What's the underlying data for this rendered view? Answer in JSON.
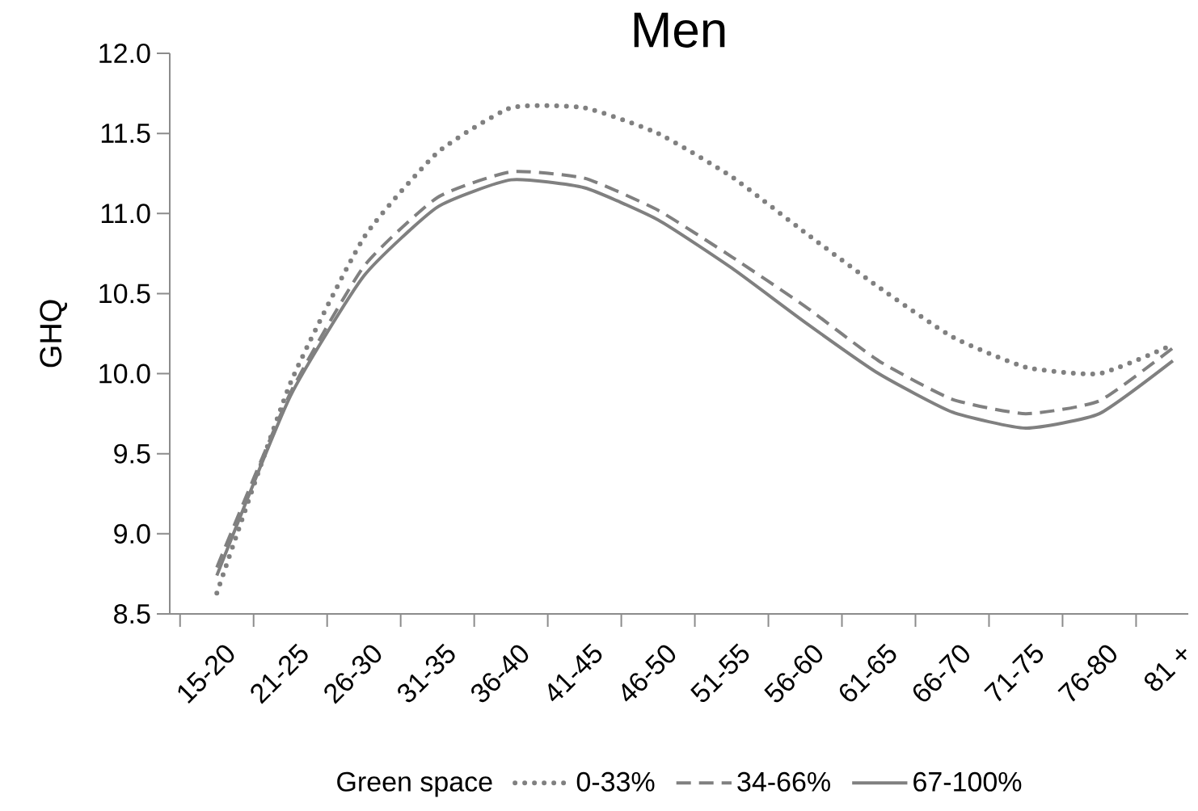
{
  "chart_data": {
    "type": "line",
    "title": "Men",
    "ylabel": "GHQ",
    "legend_title": "Green space",
    "legend": "bottom",
    "categories": [
      "15-20",
      "21-25",
      "26-30",
      "31-35",
      "36-40",
      "41-45",
      "46-50",
      "51-55",
      "56-60",
      "61-65",
      "66-70",
      "71-75",
      "76-80",
      "81 +"
    ],
    "ylim": [
      8.5,
      12.0
    ],
    "yticks": [
      {
        "value": 8.5,
        "label": "8.5"
      },
      {
        "value": 9.0,
        "label": "9.0"
      },
      {
        "value": 9.5,
        "label": "9.5"
      },
      {
        "value": 10.0,
        "label": "10.0"
      },
      {
        "value": 10.5,
        "label": "10.5"
      },
      {
        "value": 11.0,
        "label": "11.0"
      },
      {
        "value": 11.5,
        "label": "11.5"
      },
      {
        "value": 12.0,
        "label": "12.0"
      }
    ],
    "series": [
      {
        "name": "0-33%",
        "color": "#808080",
        "line_style": "dotted",
        "values": [
          8.63,
          9.94,
          10.85,
          11.38,
          11.66,
          11.66,
          11.5,
          11.23,
          10.88,
          10.54,
          10.23,
          10.04,
          10.0,
          10.18
        ]
      },
      {
        "name": "34-66%",
        "color": "#808080",
        "line_style": "dashed",
        "values": [
          8.79,
          9.88,
          10.67,
          11.1,
          11.26,
          11.22,
          11.02,
          10.73,
          10.42,
          10.08,
          9.84,
          9.75,
          9.83,
          10.16
        ]
      },
      {
        "name": "67-100%",
        "color": "#808080",
        "line_style": "solid",
        "values": [
          8.74,
          9.86,
          10.61,
          11.04,
          11.21,
          11.16,
          10.96,
          10.66,
          10.32,
          10.0,
          9.76,
          9.66,
          9.75,
          10.08
        ]
      }
    ]
  }
}
